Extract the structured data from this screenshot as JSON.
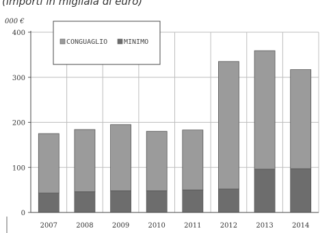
{
  "caption": "(importi in migliaia di euro)",
  "chart_data": {
    "type": "bar",
    "stacked": true,
    "unit": "000 €",
    "categories": [
      "2007",
      "2008",
      "2009",
      "2010",
      "2011",
      "2012",
      "2013",
      "2014"
    ],
    "series": [
      {
        "name": "MINIMO",
        "values": [
          43,
          46,
          48,
          48,
          50,
          52,
          96,
          97
        ],
        "color": "#6d6d6d"
      },
      {
        "name": "CONGUAGLIO",
        "values": [
          132,
          138,
          147,
          132,
          133,
          283,
          263,
          220
        ],
        "color": "#9b9b9b"
      }
    ],
    "legend_order": [
      "CONGUAGLIO",
      "MINIMO"
    ],
    "yticks": [
      0,
      100,
      200,
      300,
      400
    ],
    "ylim": [
      0,
      400
    ],
    "grid": true,
    "legend_position": "top-left"
  }
}
